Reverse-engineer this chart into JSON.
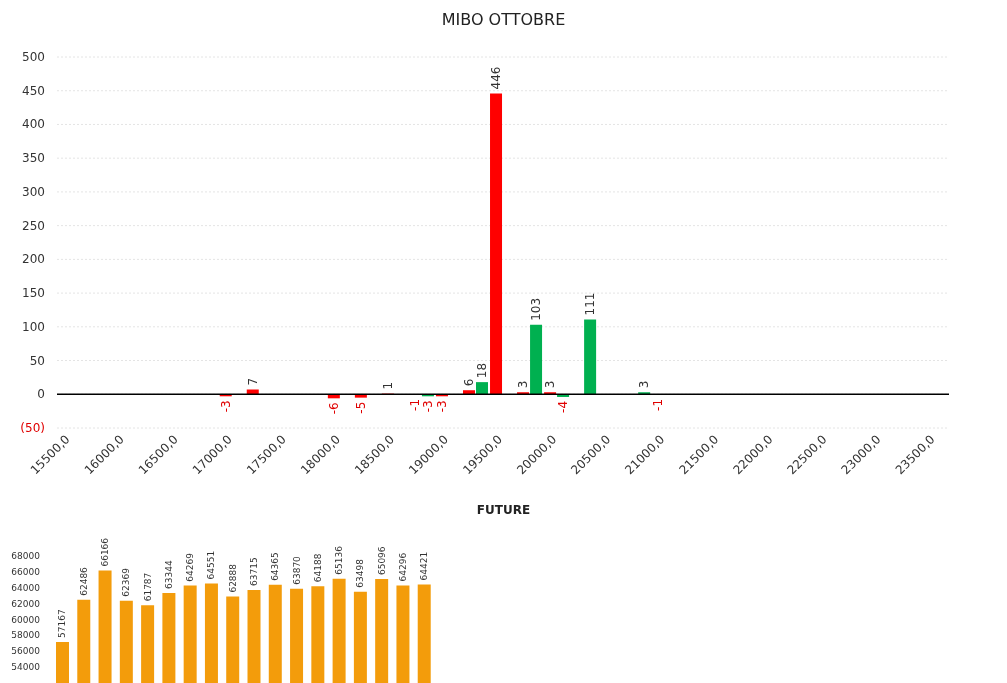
{
  "chart_data": [
    {
      "type": "bar",
      "title": "MIBO OTTOBRE",
      "xlabel": "FUTURE",
      "categories": [
        "15500,0",
        null,
        "16000,0",
        null,
        "16500,0",
        null,
        "17000,0",
        null,
        "17500,0",
        null,
        "18000,0",
        null,
        "18500,0",
        null,
        "19000,0",
        null,
        "19500,0",
        null,
        "20000,0",
        null,
        "20500,0",
        null,
        "21000,0",
        null,
        "21500,0",
        null,
        "22000,0",
        null,
        "22500,0",
        null,
        "23000,0",
        null,
        "23500,0"
      ],
      "series": [
        {
          "color": "#ff0000",
          "values": [
            null,
            null,
            null,
            null,
            null,
            null,
            -3,
            7,
            null,
            null,
            -6,
            -5,
            1,
            -1,
            -3,
            6,
            446,
            3,
            3,
            null,
            null,
            null,
            -1,
            null,
            null,
            null,
            null,
            null,
            null,
            null,
            null,
            null,
            null
          ]
        },
        {
          "color": "#00b050",
          "values": [
            null,
            null,
            null,
            null,
            null,
            null,
            null,
            null,
            null,
            null,
            null,
            null,
            null,
            -3,
            null,
            18,
            null,
            103,
            -4,
            111,
            null,
            3,
            null,
            null,
            null,
            null,
            null,
            null,
            null,
            null,
            null,
            null,
            null
          ]
        }
      ],
      "ylim": [
        -50,
        500
      ],
      "yticks": [
        {
          "value": -50,
          "label": "(50)"
        },
        0,
        50,
        100,
        150,
        200,
        250,
        300,
        350,
        400,
        450,
        500
      ],
      "grid": "y",
      "data_labels": true
    },
    {
      "type": "bar",
      "categories": [
        null,
        null,
        null,
        null,
        null,
        null,
        null,
        null,
        null,
        null,
        null,
        null,
        null,
        null,
        null,
        null,
        null,
        null
      ],
      "values": [
        57167,
        62486,
        66166,
        62369,
        61787,
        63344,
        64269,
        64551,
        62888,
        63715,
        64365,
        63870,
        64188,
        65136,
        63498,
        65096,
        64296,
        64421
      ],
      "color": "#f39c0b",
      "ylim": [
        52000,
        68000
      ],
      "yticks": [
        54000,
        56000,
        58000,
        60000,
        62000,
        64000,
        66000,
        68000
      ],
      "data_labels": true
    }
  ]
}
